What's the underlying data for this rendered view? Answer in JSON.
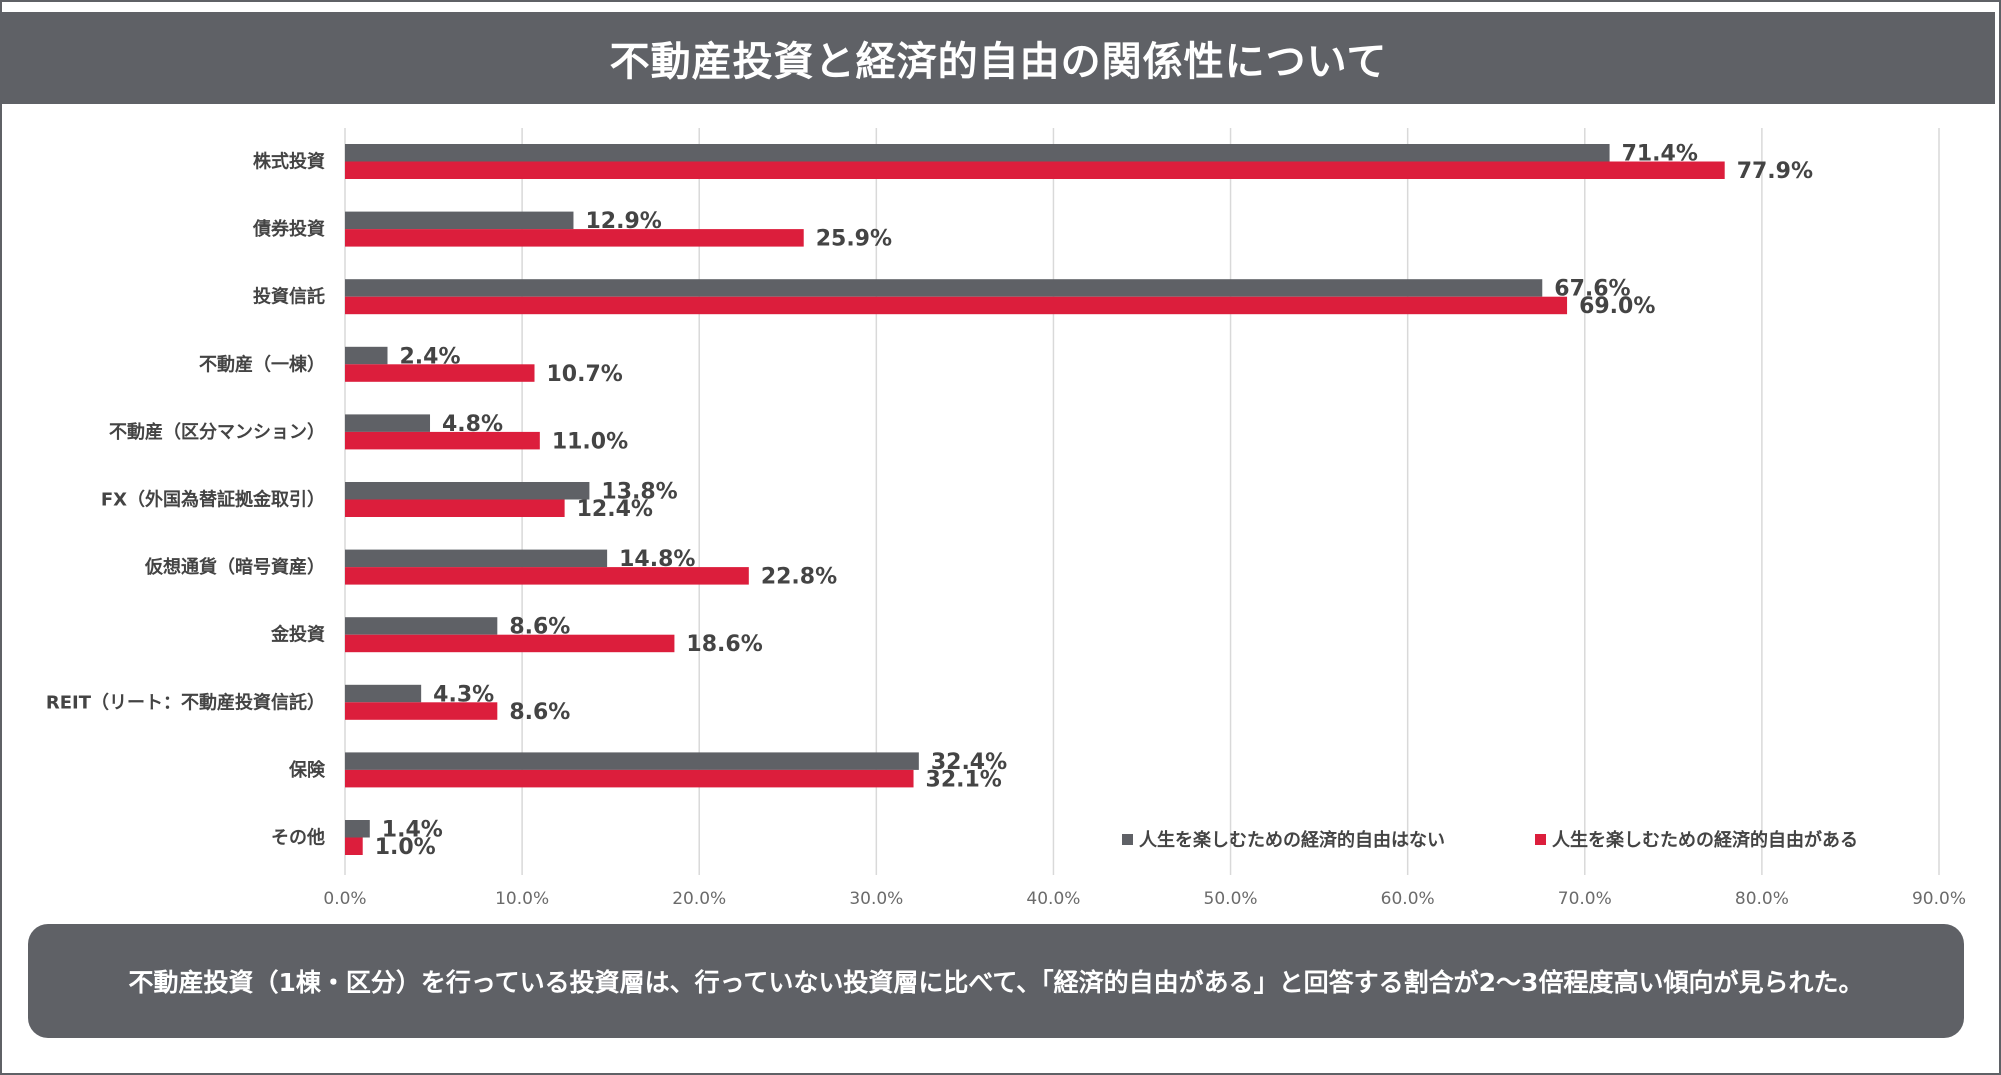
{
  "title": "不動産投資と経済的自由の関係性について",
  "note": "不動産投資（1棟・区分）を行っている投資層は、行っていない投資層に比べて、「経済的自由がある」と回答する割合が2〜3倍程度高い傾向が見られた。",
  "colors": {
    "gray": "#5f6166",
    "red": "#dc1e3c",
    "grid": "#d9d9d9",
    "text": "#444444",
    "tick": "#6b6b6b"
  },
  "chart_data": {
    "type": "bar",
    "orientation": "horizontal",
    "categories": [
      "株式投資",
      "債券投資",
      "投資信託",
      "不動産（一棟）",
      "不動産（区分マンション）",
      "FX（外国為替証拠金取引）",
      "仮想通貨（暗号資産）",
      "金投資",
      "REIT（リート：不動産投資信託）",
      "保険",
      "その他"
    ],
    "series": [
      {
        "name": "人生を楽しむための経済的自由はない",
        "color": "#5f6166",
        "values": [
          71.4,
          12.9,
          67.6,
          2.4,
          4.8,
          13.8,
          14.8,
          8.6,
          4.3,
          32.4,
          1.4
        ],
        "labels": [
          "71.4%",
          "12.9%",
          "67.6%",
          "2.4%",
          "4.8%",
          "13.8%",
          "14.8%",
          "8.6%",
          "4.3%",
          "32.4%",
          "1.4%"
        ]
      },
      {
        "name": "人生を楽しむための経済的自由がある",
        "color": "#dc1e3c",
        "values": [
          77.9,
          25.9,
          69.0,
          10.7,
          11.0,
          12.4,
          22.8,
          18.6,
          8.6,
          32.1,
          1.0
        ],
        "labels": [
          "77.9%",
          "25.9%",
          "69.0%",
          "10.7%",
          "11.0%",
          "12.4%",
          "22.8%",
          "18.6%",
          "8.6%",
          "32.1%",
          "1.0%"
        ]
      }
    ],
    "xlim": [
      0,
      90
    ],
    "xticks": [
      0,
      10,
      20,
      30,
      40,
      50,
      60,
      70,
      80,
      90
    ],
    "xtick_labels": [
      "0.0%",
      "10.0%",
      "20.0%",
      "30.0%",
      "40.0%",
      "50.0%",
      "60.0%",
      "70.0%",
      "80.0%",
      "90.0%"
    ],
    "grid": true,
    "legend_position": "bottom-right"
  }
}
